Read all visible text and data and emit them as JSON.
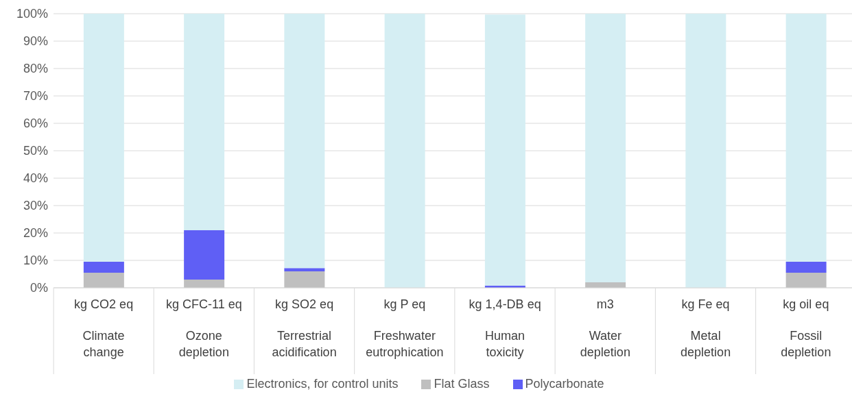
{
  "chart_data": {
    "type": "bar",
    "stacked": true,
    "categories": [
      "kg CO2 eq\nClimate change",
      "kg CFC-11 eq\nOzone depletion",
      "kg SO2 eq\nTerrestrial acidification",
      "kg P eq\nFreshwater eutrophication",
      "kg 1,4-DB eq\nHuman toxicity",
      "m3\nWater depletion",
      "kg Fe eq\nMetal depletion",
      "kg oil eq\nFossil depletion"
    ],
    "series": [
      {
        "name": "Flat Glass",
        "color": "#bfbfbf",
        "values": [
          5.5,
          3,
          6,
          0,
          null,
          2,
          0,
          5.5
        ]
      },
      {
        "name": "Polycarbonate",
        "color": "#5f5ff5",
        "values": [
          4,
          18,
          1.2,
          0,
          0.8,
          0,
          0,
          4
        ]
      },
      {
        "name": "Electronics, for control units",
        "color": "#d5eef3",
        "values": [
          90.5,
          79,
          92.8,
          100,
          98.9,
          98,
          100,
          90.5
        ]
      }
    ],
    "ylim": [
      0,
      100
    ],
    "yticks": [
      {
        "value": 0,
        "label": "0%"
      },
      {
        "value": 10,
        "label": "10%"
      },
      {
        "value": 20,
        "label": "20%"
      },
      {
        "value": 30,
        "label": "30%"
      },
      {
        "value": 40,
        "label": "40%"
      },
      {
        "value": 50,
        "label": "50%"
      },
      {
        "value": 60,
        "label": "60%"
      },
      {
        "value": 70,
        "label": "70%"
      },
      {
        "value": 80,
        "label": "80%"
      },
      {
        "value": 90,
        "label": "90%"
      },
      {
        "value": 100,
        "label": "100%"
      }
    ],
    "grid": "y",
    "legend": "bottom"
  }
}
